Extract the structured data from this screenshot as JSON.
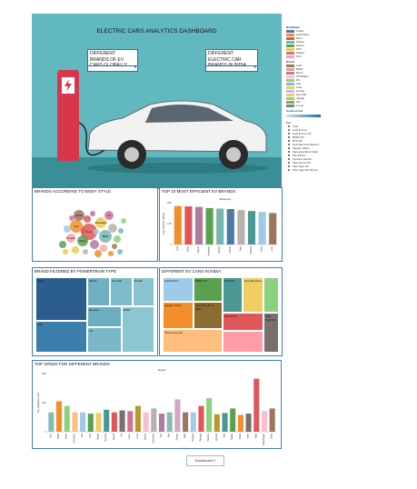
{
  "dashboard": {
    "title": "ELECTRIC CARS ANALYTICS DASHBOARD",
    "sel_global": "DIFFERENT BRANDS OF EV CARS GLOBALLY",
    "sel_india": "DIFFERENT ELECTRIC CAR BRANDS IN INDIA",
    "footer_tab": "Dashboard 2"
  },
  "legend": {
    "body_title": "BodyStyle",
    "body_items": [
      {
        "label": "Cabrio",
        "color": "#4e79a7"
      },
      {
        "label": "Hatchback",
        "color": "#f28e2b"
      },
      {
        "label": "MPV",
        "color": "#e15759"
      },
      {
        "label": "Pickup",
        "color": "#76b7b2"
      },
      {
        "label": "Sedan",
        "color": "#59a14f"
      },
      {
        "label": "SPV",
        "color": "#edc948"
      },
      {
        "label": "Station",
        "color": "#b07aa1"
      },
      {
        "label": "SUV",
        "color": "#ff9da7"
      }
    ],
    "brand_title": "Brand",
    "brand_items": [
      {
        "label": "Audi",
        "color": "#9c755f"
      },
      {
        "label": "BMW",
        "color": "#bab0ac"
      },
      {
        "label": "Byton",
        "color": "#d37295"
      },
      {
        "label": "CITROEN",
        "color": "#fabfd2"
      },
      {
        "label": "DS",
        "color": "#8cd17d"
      },
      {
        "label": "Fiat",
        "color": "#86bcb6"
      },
      {
        "label": "Ford",
        "color": "#f1ce63"
      },
      {
        "label": "Honda",
        "color": "#a0cbe8"
      },
      {
        "label": "Hyundai",
        "color": "#ffbe7d"
      },
      {
        "label": "Jaguar",
        "color": "#8cd17d"
      },
      {
        "label": "Kia",
        "color": "#b6992d"
      },
      {
        "label": "Lexus",
        "color": "#499894"
      }
    ],
    "range_title": "Count of Car",
    "car_title": "Car",
    "car_items": [
      "Audi",
      "Audi E-Tron",
      "Audi E-Tron GT",
      "BMW iX3",
      "BYD E6",
      "Hyundai Kona Electric",
      "Jaguar I-Pace",
      "Mercedes-Benz EQC",
      "MG ZS EV",
      "Porsche Taycan",
      "Tata Nexon EV",
      "Tata Tigor EV",
      "Tata Tigor EV Ziptron"
    ]
  },
  "panels": {
    "body_style": "BRANDS ACCORDING TO BODY STYLE",
    "efficient": "TOP 10 MOST EFFICIENT EV BRANDS",
    "powertrain": "BRAND FILTERED BY POWERTRAIN TYPE",
    "india": "DIFFERENT EV CARS IN INDIA",
    "speed": "TOP SPEED FOR DIFFERENT BRANDS"
  },
  "bubbles": [
    "Tesla",
    "Audi",
    "Volkswagen",
    "BMW",
    "Nissan",
    "Skoda",
    "Kia",
    "Renault"
  ],
  "powertrain_tiles": [
    "Tesla",
    "Audi",
    "Skoda",
    "Hyundai",
    "Nissan",
    "Renault",
    "Kia",
    "BMW"
  ],
  "india_tiles": [
    {
      "label": "Audi E-Tron",
      "color": "#a0cbe8"
    },
    {
      "label": "BMW iX3",
      "color": "#59a14f"
    },
    {
      "label": "BYD E6",
      "color": "#499894"
    },
    {
      "label": "Hyundai Kona",
      "color": "#f1ce63"
    },
    {
      "label": "Jaguar I-Pace",
      "color": "#f28e2b"
    },
    {
      "label": "Mercedes-Benz EQC",
      "color": "#8c6d31"
    },
    {
      "label": "MG ZS EV",
      "color": "#e15759"
    },
    {
      "label": "Tata Nexon EV",
      "color": "#ffbe7d"
    },
    {
      "label": "Tata Tigor EV",
      "color": "#79706e"
    }
  ],
  "chart_data": [
    {
      "type": "bar",
      "title": "Efficiency",
      "ylabel": "Avg. Efficiency_WhKm",
      "categories": [
        "Audi",
        "Byton",
        "Jaguar",
        "Mercedes",
        "Renault",
        "Nissan",
        "Tesla",
        "Polestar",
        "Volvo",
        "Lucid"
      ],
      "values": [
        230,
        228,
        225,
        218,
        215,
        212,
        206,
        200,
        195,
        188
      ],
      "ylim": [
        0,
        250
      ],
      "colors": [
        "#f28e2b",
        "#e15759",
        "#b07aa1",
        "#59a14f",
        "#76b7b2",
        "#4e79a7",
        "#bab0ac",
        "#499894",
        "#a0cbe8",
        "#9c755f"
      ]
    },
    {
      "type": "bar",
      "title": "Speed",
      "ylabel": "Avg. TopSpeed_KmH",
      "categories": [
        "Audi",
        "BMW",
        "Byton",
        "CITROEN",
        "Fiat",
        "Ford",
        "Honda",
        "Hyundai",
        "Jaguar",
        "Kia",
        "Lexus",
        "Lucid",
        "Mazda",
        "Mercedes",
        "MG",
        "Mini",
        "Nissan",
        "Opel",
        "Peugeot",
        "Polestar",
        "Porsche",
        "Renault",
        "Seat",
        "Skoda",
        "Smart",
        "Sono",
        "Tesla",
        "Volkswagen",
        "Volvo"
      ],
      "values": [
        150,
        235,
        200,
        150,
        150,
        140,
        145,
        170,
        150,
        165,
        160,
        200,
        150,
        180,
        140,
        150,
        250,
        150,
        150,
        200,
        260,
        135,
        145,
        180,
        130,
        140,
        410,
        160,
        180
      ],
      "ylim": [
        0,
        450
      ],
      "colors": [
        "#86bcb6",
        "#f28e2b",
        "#8cd17d",
        "#ffbe7d",
        "#a0cbe8",
        "#59a14f",
        "#f1ce63",
        "#499894",
        "#e15759",
        "#79706e",
        "#d37295",
        "#b6992d",
        "#fabfd2",
        "#bab0ac",
        "#b07aa1",
        "#86bcb6",
        "#d4a6c8",
        "#9d7660",
        "#a0cbe8",
        "#e15759",
        "#8cd17d",
        "#b6992d",
        "#499894",
        "#59a14f",
        "#f28e2b",
        "#79706e",
        "#e15759",
        "#fabfd2",
        "#9c755f"
      ]
    }
  ]
}
